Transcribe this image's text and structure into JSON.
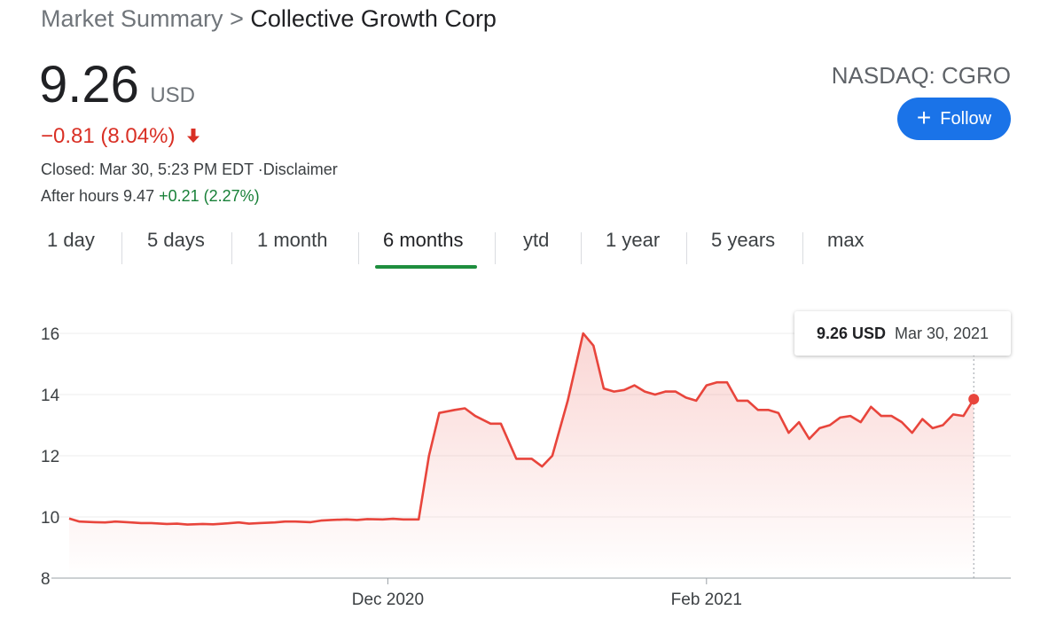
{
  "breadcrumb": {
    "root": "Market Summary",
    "separator": ">",
    "company": "Collective Growth Corp"
  },
  "quote": {
    "price": "9.26",
    "currency": "USD",
    "change": "−0.81 (8.04%)",
    "closed_text": "Closed: Mar 30, 5:23 PM EDT ·Disclaimer",
    "after_hours_label": "After hours 9.47",
    "after_hours_change": "+0.21 (2.27%)",
    "ticker": "NASDAQ: CGRO"
  },
  "follow_button": {
    "label": "Follow"
  },
  "tabs": [
    {
      "label": "1 day",
      "active": false
    },
    {
      "label": "5 days",
      "active": false
    },
    {
      "label": "1 month",
      "active": false
    },
    {
      "label": "6 months",
      "active": true
    },
    {
      "label": "ytd",
      "active": false
    },
    {
      "label": "1 year",
      "active": false
    },
    {
      "label": "5 years",
      "active": false
    },
    {
      "label": "max",
      "active": false
    }
  ],
  "colors": {
    "line": "#e8453c",
    "up": "#188038",
    "down": "#d93025",
    "accent": "#1a73e8",
    "tab_active": "#1e8e3e"
  },
  "tooltip": {
    "value": "9.26 USD",
    "date": "Mar 30, 2021"
  },
  "chart_data": {
    "type": "area",
    "title": "",
    "xlabel": "",
    "ylabel": "",
    "ylim": [
      8,
      16
    ],
    "y_ticks": [
      8,
      10,
      12,
      14,
      16
    ],
    "x_ticks": [
      {
        "label": "Dec 2020",
        "date": "2020-12-01"
      },
      {
        "label": "Feb 2021",
        "date": "2021-02-01"
      }
    ],
    "x_range": [
      "2020-09-30",
      "2021-03-31"
    ],
    "grid": true,
    "series": [
      {
        "values": [
          [
            "2020-09-30",
            9.95
          ],
          [
            "2020-10-02",
            9.85
          ],
          [
            "2020-10-05",
            9.83
          ],
          [
            "2020-10-07",
            9.82
          ],
          [
            "2020-10-09",
            9.85
          ],
          [
            "2020-10-12",
            9.82
          ],
          [
            "2020-10-14",
            9.8
          ],
          [
            "2020-10-16",
            9.8
          ],
          [
            "2020-10-19",
            9.77
          ],
          [
            "2020-10-21",
            9.78
          ],
          [
            "2020-10-23",
            9.75
          ],
          [
            "2020-10-26",
            9.77
          ],
          [
            "2020-10-28",
            9.76
          ],
          [
            "2020-10-30",
            9.78
          ],
          [
            "2020-11-02",
            9.82
          ],
          [
            "2020-11-04",
            9.78
          ],
          [
            "2020-11-06",
            9.8
          ],
          [
            "2020-11-09",
            9.82
          ],
          [
            "2020-11-11",
            9.85
          ],
          [
            "2020-11-13",
            9.85
          ],
          [
            "2020-11-16",
            9.83
          ],
          [
            "2020-11-18",
            9.88
          ],
          [
            "2020-11-20",
            9.9
          ],
          [
            "2020-11-23",
            9.92
          ],
          [
            "2020-11-25",
            9.9
          ],
          [
            "2020-11-27",
            9.93
          ],
          [
            "2020-11-30",
            9.92
          ],
          [
            "2020-12-02",
            9.94
          ],
          [
            "2020-12-04",
            9.92
          ],
          [
            "2020-12-07",
            9.92
          ],
          [
            "2020-12-09",
            12.0
          ],
          [
            "2020-12-11",
            13.4
          ],
          [
            "2020-12-14",
            13.5
          ],
          [
            "2020-12-16",
            13.55
          ],
          [
            "2020-12-18",
            13.3
          ],
          [
            "2020-12-21",
            13.05
          ],
          [
            "2020-12-23",
            13.05
          ],
          [
            "2020-12-26",
            11.9
          ],
          [
            "2020-12-29",
            11.9
          ],
          [
            "2020-12-31",
            11.65
          ],
          [
            "2021-01-02",
            12.0
          ],
          [
            "2021-01-05",
            13.8
          ],
          [
            "2021-01-08",
            16.0
          ],
          [
            "2021-01-10",
            15.6
          ],
          [
            "2021-01-12",
            14.2
          ],
          [
            "2021-01-14",
            14.1
          ],
          [
            "2021-01-16",
            14.15
          ],
          [
            "2021-01-18",
            14.3
          ],
          [
            "2021-01-20",
            14.1
          ],
          [
            "2021-01-22",
            14.0
          ],
          [
            "2021-01-24",
            14.1
          ],
          [
            "2021-01-26",
            14.1
          ],
          [
            "2021-01-28",
            13.9
          ],
          [
            "2021-01-30",
            13.8
          ],
          [
            "2021-02-01",
            14.3
          ],
          [
            "2021-02-03",
            14.4
          ],
          [
            "2021-02-05",
            14.4
          ],
          [
            "2021-02-07",
            13.8
          ],
          [
            "2021-02-09",
            13.8
          ],
          [
            "2021-02-11",
            13.5
          ],
          [
            "2021-02-13",
            13.5
          ],
          [
            "2021-02-15",
            13.4
          ],
          [
            "2021-02-17",
            12.75
          ],
          [
            "2021-02-19",
            13.1
          ],
          [
            "2021-02-21",
            12.55
          ],
          [
            "2021-02-23",
            12.9
          ],
          [
            "2021-02-25",
            13.0
          ],
          [
            "2021-02-27",
            13.25
          ],
          [
            "2021-03-01",
            13.3
          ],
          [
            "2021-03-03",
            13.1
          ],
          [
            "2021-03-05",
            13.6
          ],
          [
            "2021-03-07",
            13.3
          ],
          [
            "2021-03-09",
            13.3
          ],
          [
            "2021-03-11",
            13.1
          ],
          [
            "2021-03-13",
            12.75
          ],
          [
            "2021-03-15",
            13.2
          ],
          [
            "2021-03-17",
            12.9
          ],
          [
            "2021-03-19",
            13.0
          ],
          [
            "2021-03-21",
            13.35
          ],
          [
            "2021-03-23",
            13.3
          ],
          [
            "2021-03-25",
            13.85
          ]
        ]
      }
    ]
  }
}
